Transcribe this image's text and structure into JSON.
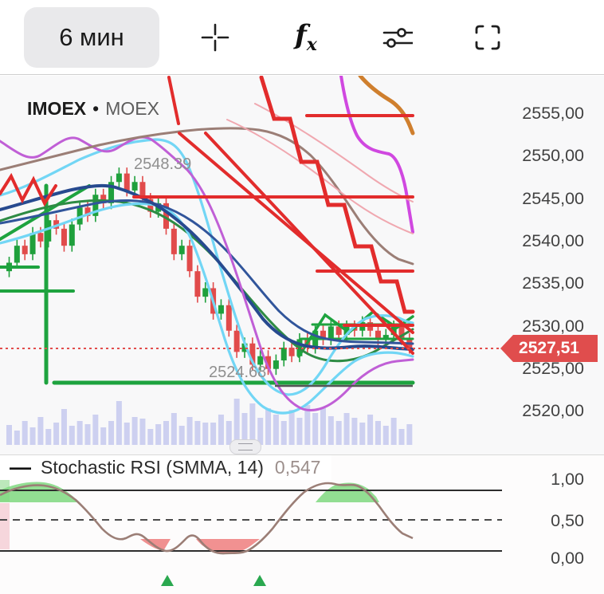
{
  "toolbar": {
    "timeframe": "6 мин",
    "fx": {
      "f": "f",
      "x": "x"
    }
  },
  "symbol_bar": {
    "symbol": "IMOEX",
    "dot": "•",
    "exchange": "MOEX"
  },
  "price_axis": {
    "labels": [
      "2555,00",
      "2550,00",
      "2545,00",
      "2540,00",
      "2535,00",
      "2530,00",
      "2525,00",
      "2520,00"
    ]
  },
  "price_badge": {
    "value": "2527,51"
  },
  "chart_labels": {
    "high": "2548.39",
    "low": "2524.68"
  },
  "indicator_pane": {
    "collapse": "—",
    "title": "Stochastic RSI (SMMA, 14)",
    "value": "0,547",
    "axis_labels": [
      "1,00",
      "0,50",
      "0,00"
    ]
  },
  "colors": {
    "up": "#1fa03c",
    "down": "#e14b4b",
    "volume": "#c6caef",
    "badge": "#e04d4d",
    "dotted_line": "#e24d4d"
  },
  "chart_data": {
    "type": "candlestick",
    "symbol": "IMOEX",
    "exchange": "MOEX",
    "timeframe": "6 мин",
    "last_price": 2527.51,
    "marked_levels": [
      2548.39,
      2524.68
    ],
    "price_axis_ticks": [
      2555,
      2550,
      2545,
      2540,
      2535,
      2530,
      2525,
      2520
    ],
    "first_open": 2536.5,
    "closes": [
      2537.5,
      2539.5,
      2538.5,
      2541,
      2540,
      2542.5,
      2541.5,
      2539.5,
      2542,
      2544,
      2543,
      2545.5,
      2544.5,
      2547,
      2548,
      2546,
      2547,
      2545,
      2543.5,
      2544.5,
      2541.5,
      2538.5,
      2539.5,
      2536.5,
      2533.5,
      2534.5,
      2531.5,
      2532.5,
      2529.5,
      2527,
      2528,
      2525.5,
      2526.5,
      2525,
      2526,
      2527.5,
      2526.5,
      2528.5,
      2527.5,
      2529.5,
      2528.5,
      2530,
      2529,
      2530,
      2529.5,
      2530.5,
      2529.5,
      2528.5,
      2529,
      2530,
      2528.5,
      2527.5
    ],
    "volumes": [
      25,
      18,
      30,
      22,
      35,
      20,
      28,
      45,
      24,
      30,
      26,
      38,
      22,
      30,
      55,
      28,
      35,
      33,
      20,
      26,
      30,
      40,
      24,
      35,
      30,
      28,
      28,
      38,
      30,
      58,
      40,
      52,
      34,
      46,
      38,
      30,
      44,
      34,
      50,
      40,
      46,
      36,
      30,
      40,
      34,
      28,
      38,
      30,
      24,
      34,
      20,
      26
    ],
    "stochastic_rsi": {
      "indicator": "Stochastic RSI (SMMA, 14)",
      "current_value": 0.547,
      "levels": [
        1.0,
        0.5,
        0.0
      ],
      "overbought": 0.8,
      "oversold": 0.2
    }
  }
}
